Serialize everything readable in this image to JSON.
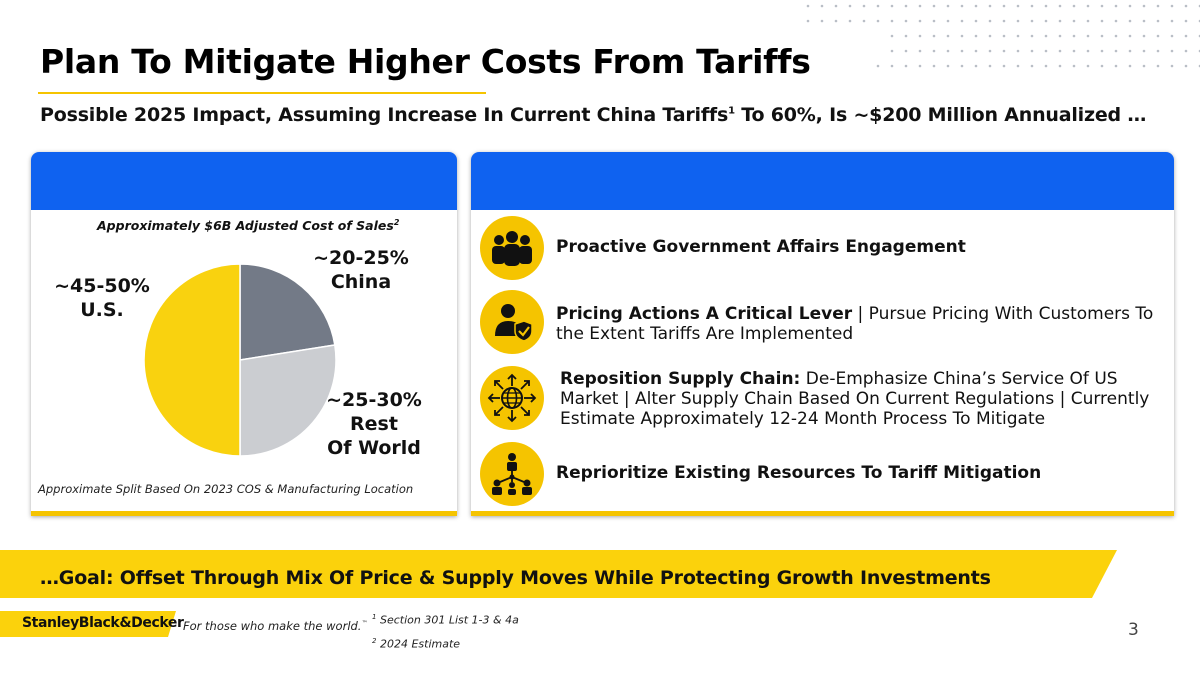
{
  "title": "Plan To Mitigate Higher Costs From Tariffs",
  "subtitle": {
    "before": "Possible 2025 Impact, Assuming Increase In Current China Tariffs",
    "sup": "1",
    "after": " To 60%, Is ~$200 Million Annualized …"
  },
  "left_panel": {
    "caption": "Approximately $6B Adjusted Cost of Sales",
    "caption_sup": "2",
    "footnote": "Approximate Split Based On 2023 COS & Manufacturing Location",
    "labels": {
      "china_pct": "~20-25%",
      "china_name": "China",
      "us_pct": "~45-50%",
      "us_name": "U.S.",
      "rest_pct": "~25-30%",
      "rest_name_1": "Rest",
      "rest_name_2": "Of World"
    }
  },
  "chart_data": {
    "type": "pie",
    "title": "Approximately $6B Adjusted Cost of Sales",
    "slices": [
      {
        "name": "China",
        "label": "~20-25%",
        "value": 22.5,
        "color": "#737a87"
      },
      {
        "name": "Rest Of World",
        "label": "~25-30%",
        "value": 27.5,
        "color": "#cbcdd1"
      },
      {
        "name": "U.S.",
        "label": "~45-50%",
        "value": 50,
        "color": "#f9d20f"
      }
    ],
    "start": "12 o'clock, clockwise"
  },
  "items": [
    {
      "icon": "people-group-icon",
      "bold": "Proactive Government Affairs Engagement",
      "rest": ""
    },
    {
      "icon": "user-shield-icon",
      "bold": "Pricing Actions A Critical Lever",
      "rest": " | Pursue Pricing With Customers To the Extent Tariffs Are Implemented"
    },
    {
      "icon": "globe-arrows-icon",
      "bold": "Reposition Supply Chain:",
      "rest": " De-Emphasize China’s Service Of US Market | Alter Supply Chain Based On Current Regulations | Currently Estimate Approximately 12-24 Month Process To Mitigate"
    },
    {
      "icon": "org-team-icon",
      "bold": "Reprioritize Existing Resources To Tariff Mitigation",
      "rest": ""
    }
  ],
  "goal": "…Goal: Offset Through Mix Of Price & Supply Moves While Protecting Growth Investments",
  "footer": {
    "logo": "StanleyBlack&Decker",
    "tagline": "For those who make the world.",
    "tagline_sup": "™",
    "fn1_sup": "1",
    "fn1": " Section 301 List 1-3 & 4a",
    "fn2_sup": "2",
    "fn2": " 2024 Estimate",
    "page": "3"
  },
  "colors": {
    "accent_blue": "#0f62f0",
    "accent_yellow": "#f5c400",
    "goal_yellow": "#fbd20c"
  }
}
